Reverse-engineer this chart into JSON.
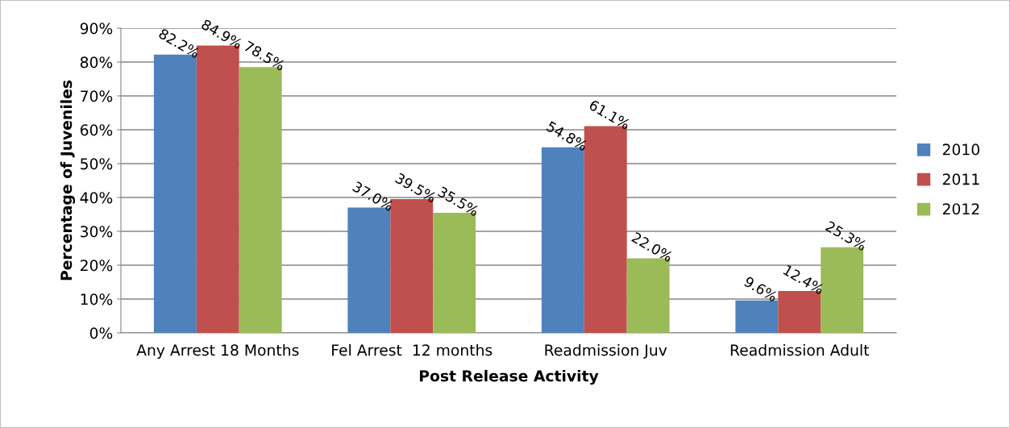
{
  "chart_data": {
    "type": "bar",
    "xlabel": "Post Release Activity",
    "ylabel": "Percentage of Juveniles",
    "categories": [
      "Any Arrest 18 Months",
      "Fel Arrest  12 months",
      "Readmission Juv",
      "Readmission Adult"
    ],
    "series": [
      {
        "name": "2010",
        "color": "#4f81bd",
        "values": [
          82.2,
          37.0,
          54.8,
          9.6
        ],
        "value_labels": [
          "82.2%",
          "37.0%",
          "54.8%",
          "9.6%"
        ]
      },
      {
        "name": "2011",
        "color": "#c0504d",
        "values": [
          84.9,
          39.5,
          61.1,
          12.4
        ],
        "value_labels": [
          "84.9%",
          "39.5%",
          "61.1%",
          "12.4%"
        ]
      },
      {
        "name": "2012",
        "color": "#9bbb59",
        "values": [
          78.5,
          35.5,
          22.0,
          25.3
        ],
        "value_labels": [
          "78.5%",
          "35.5%",
          "22.0%",
          "25.3%"
        ]
      }
    ],
    "ylim": [
      0,
      90
    ],
    "yticks": [
      {
        "value": 0,
        "label": "0%"
      },
      {
        "value": 10,
        "label": "10%"
      },
      {
        "value": 20,
        "label": "20%"
      },
      {
        "value": 30,
        "label": "30%"
      },
      {
        "value": 40,
        "label": "40%"
      },
      {
        "value": 50,
        "label": "50%"
      },
      {
        "value": 60,
        "label": "60%"
      },
      {
        "value": 70,
        "label": "70%"
      },
      {
        "value": 80,
        "label": "80%"
      },
      {
        "value": 90,
        "label": "90%"
      }
    ],
    "grid": "y",
    "legend": "right"
  }
}
